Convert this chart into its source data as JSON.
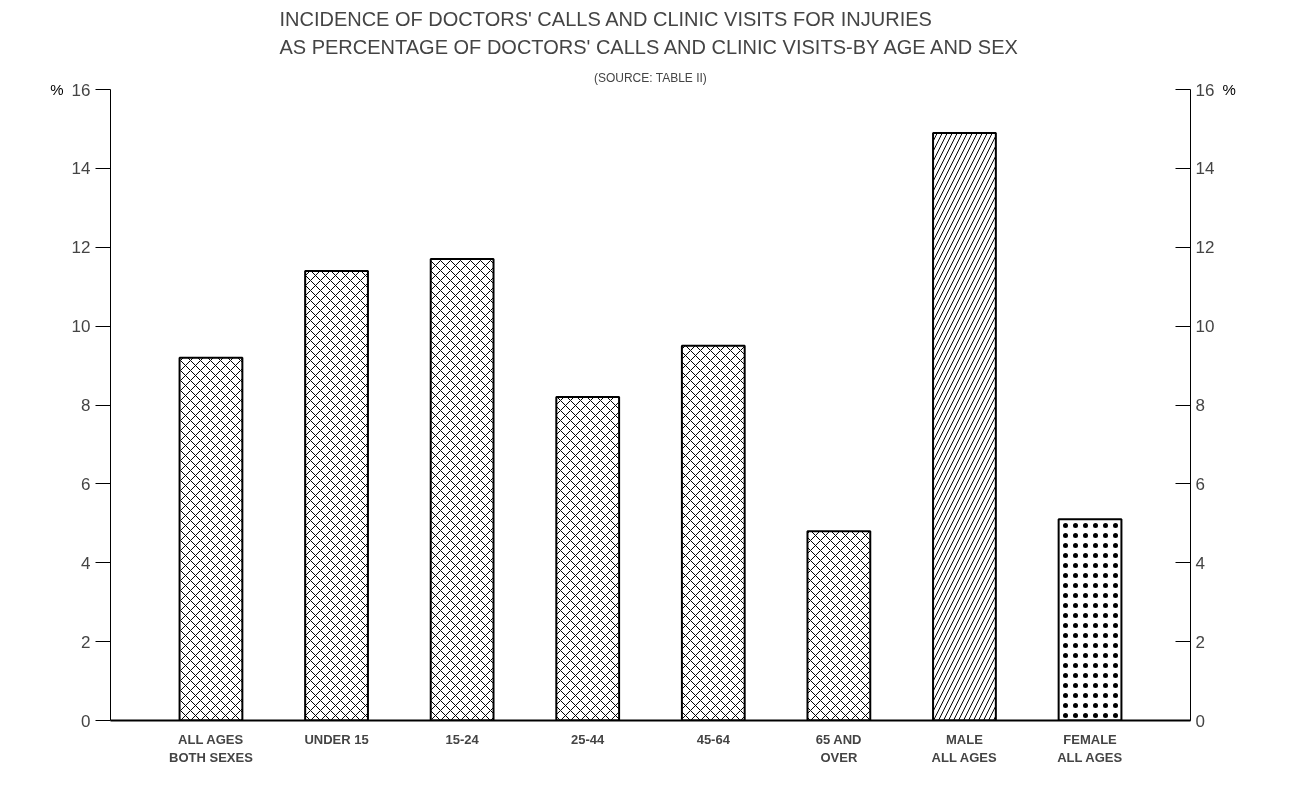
{
  "chart_data": {
    "type": "bar",
    "title": "INCIDENCE OF DOCTORS' CALLS AND CLINIC VISITS FOR INJURIES\nAS PERCENTAGE OF DOCTORS' CALLS AND CLINIC VISITS-BY AGE AND SEX",
    "subtitle": "(SOURCE: TABLE II)",
    "ylabel": "%",
    "y2label": "%",
    "categories": [
      "ALL AGES\nBOTH SEXES",
      "UNDER 15",
      "15-24",
      "25-44",
      "45-64",
      "65 AND\nOVER",
      "MALE\nALL AGES",
      "FEMALE\nALL AGES"
    ],
    "values": [
      9.2,
      11.4,
      11.7,
      8.2,
      9.5,
      4.8,
      14.9,
      5.1
    ],
    "color": "#000000",
    "ylim": [
      0,
      16
    ],
    "yticks": [
      0,
      2,
      4,
      6,
      8,
      10,
      12,
      14,
      16
    ],
    "y2lim": [
      0,
      16
    ],
    "y2ticks": [
      0,
      2,
      4,
      6,
      8,
      10,
      12,
      14,
      16
    ],
    "grid": false
  }
}
